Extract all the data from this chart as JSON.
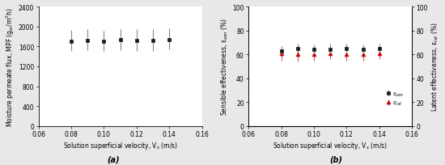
{
  "panel_a": {
    "x": [
      0.08,
      0.09,
      0.1,
      0.11,
      0.12,
      0.13,
      0.14
    ],
    "y": [
      1700,
      1720,
      1700,
      1730,
      1720,
      1720,
      1740
    ],
    "yerr_low": [
      200,
      200,
      200,
      200,
      210,
      210,
      200
    ],
    "yerr_high": [
      230,
      220,
      220,
      210,
      230,
      220,
      220
    ],
    "xlabel": "Solution superficial velocity, V$_s$ (m/s)",
    "ylabel": "Moisture permeate flux, MPF (g$_w$/m$^2$h)",
    "xlim": [
      0.06,
      0.16
    ],
    "ylim": [
      0,
      2400
    ],
    "yticks": [
      0,
      400,
      800,
      1200,
      1600,
      2000,
      2400
    ],
    "xticks": [
      0.06,
      0.08,
      0.1,
      0.12,
      0.14,
      0.16
    ],
    "label": "(a)",
    "marker_color": "#1a1a1a",
    "ecolor": "#888888",
    "marker": "s",
    "markersize": 3.5
  },
  "panel_b": {
    "x": [
      0.08,
      0.09,
      0.1,
      0.11,
      0.12,
      0.13,
      0.14
    ],
    "y_sen": [
      63,
      65,
      64,
      64,
      65,
      64,
      65
    ],
    "yerr_sen_low": [
      3,
      3,
      3,
      3,
      4,
      3,
      3
    ],
    "yerr_sen_high": [
      4,
      4,
      4,
      5,
      4,
      4,
      4
    ],
    "y_lat": [
      61,
      60,
      60,
      61,
      60,
      60,
      61
    ],
    "yerr_lat_low": [
      6,
      6,
      5,
      5,
      5,
      5,
      5
    ],
    "yerr_lat_high": [
      5,
      5,
      5,
      5,
      5,
      5,
      5
    ],
    "xlabel": "Solution superficial velocity, V$_s$ (m/s)",
    "ylabel_left": "Sensible effectiveness, ε$_{sen}$ (%)",
    "ylabel_right": "Latent effectiveness, ε$_{lat}$ (%)",
    "xlim": [
      0.06,
      0.16
    ],
    "ylim": [
      0,
      100
    ],
    "yticks": [
      0,
      20,
      40,
      60,
      80,
      100
    ],
    "xticks": [
      0.06,
      0.08,
      0.1,
      0.12,
      0.14,
      0.16
    ],
    "label": "(b)",
    "sen_color": "#1a1a1a",
    "lat_color": "#cc0000",
    "ecolor_sen": "#888888",
    "ecolor_lat": "#cc6666",
    "sen_marker": "s",
    "lat_marker": "^",
    "markersize": 3.5,
    "legend_sen": "$ε_{sen}$",
    "legend_lat": "$ε_{lat}$"
  },
  "figure_bg": "#e8e8e8",
  "axes_bg": "white",
  "tick_fontsize": 5.5,
  "label_fontsize": 5.5,
  "panel_label_fontsize": 7
}
